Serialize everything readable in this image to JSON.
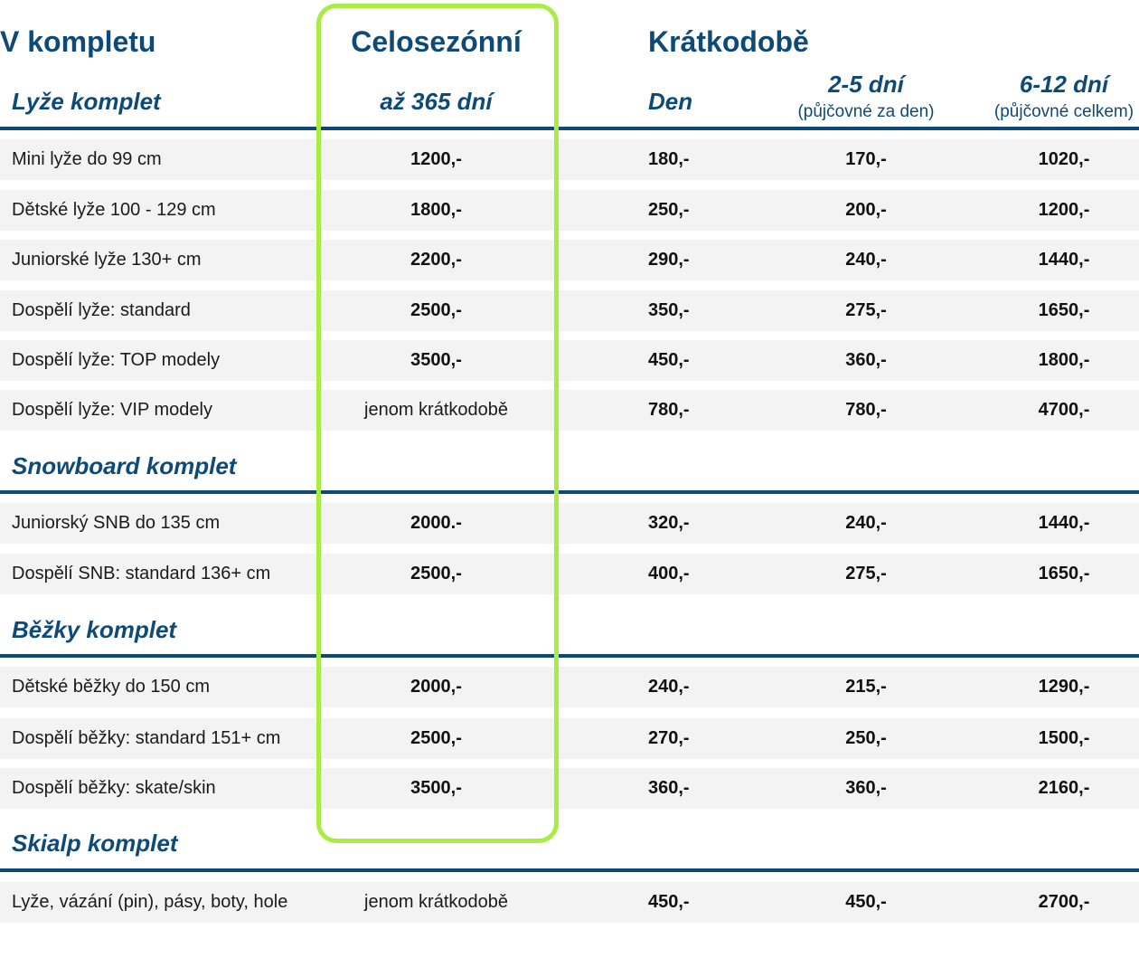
{
  "headers": {
    "v_kompletu": "V kompletu",
    "celosezonni": "Celosezónní",
    "kratkodobe": "Krátkodobě",
    "az_365": "až 365 dní",
    "den": "Den",
    "d2_5": "2-5 dní",
    "d2_5_note": "(půjčovné za den)",
    "d6_12": "6-12 dní",
    "d6_12_note": "(půjčovné celkem)"
  },
  "sections": {
    "lyze": "Lyže komplet",
    "snowboard": "Snowboard komplet",
    "bezky": "Běžky komplet",
    "skialp": "Skialp komplet"
  },
  "rows": [
    {
      "label": "Mini lyže do 99 cm",
      "season": "1200,-",
      "day": "180,-",
      "d2_5": "170,-",
      "d6_12": "1020,-"
    },
    {
      "label": "Dětské lyže 100 - 129 cm",
      "season": "1800,-",
      "day": "250,-",
      "d2_5": "200,-",
      "d6_12": "1200,-"
    },
    {
      "label": "Juniorské lyže 130+ cm",
      "season": "2200,-",
      "day": "290,-",
      "d2_5": "240,-",
      "d6_12": "1440,-"
    },
    {
      "label": "Dospělí lyže: standard",
      "season": "2500,-",
      "day": "350,-",
      "d2_5": "275,-",
      "d6_12": "1650,-"
    },
    {
      "label": "Dospělí lyže: TOP modely",
      "season": "3500,-",
      "day": "450,-",
      "d2_5": "360,-",
      "d6_12": "1800,-"
    },
    {
      "label": "Dospělí lyže: VIP modely",
      "season": "jenom krátkodobě",
      "day": "780,-",
      "d2_5": "780,-",
      "d6_12": "4700,-"
    },
    {
      "label": "Juniorský SNB do 135 cm",
      "season": "2000.-",
      "day": "320,-",
      "d2_5": "240,-",
      "d6_12": "1440,-"
    },
    {
      "label": "Dospělí SNB: standard 136+ cm",
      "season": "2500,-",
      "day": "400,-",
      "d2_5": "275,-",
      "d6_12": "1650,-"
    },
    {
      "label": "Dětské běžky do 150 cm",
      "season": "2000,-",
      "day": "240,-",
      "d2_5": "215,-",
      "d6_12": "1290,-"
    },
    {
      "label": "Dospělí běžky: standard 151+ cm",
      "season": "2500,-",
      "day": "270,-",
      "d2_5": "250,-",
      "d6_12": "1500,-"
    },
    {
      "label": "Dospělí běžky: skate/skin",
      "season": "3500,-",
      "day": "360,-",
      "d2_5": "360,-",
      "d6_12": "2160,-"
    },
    {
      "label": "Lyže, vázání (pin), pásy, boty, hole",
      "season": "jenom krátkodobě",
      "day": "450,-",
      "d2_5": "450,-",
      "d6_12": "2700,-"
    }
  ],
  "colors": {
    "heading": "#0d4a78",
    "highlight_border": "#a8ec45",
    "row_background": "#f3f3f3"
  }
}
